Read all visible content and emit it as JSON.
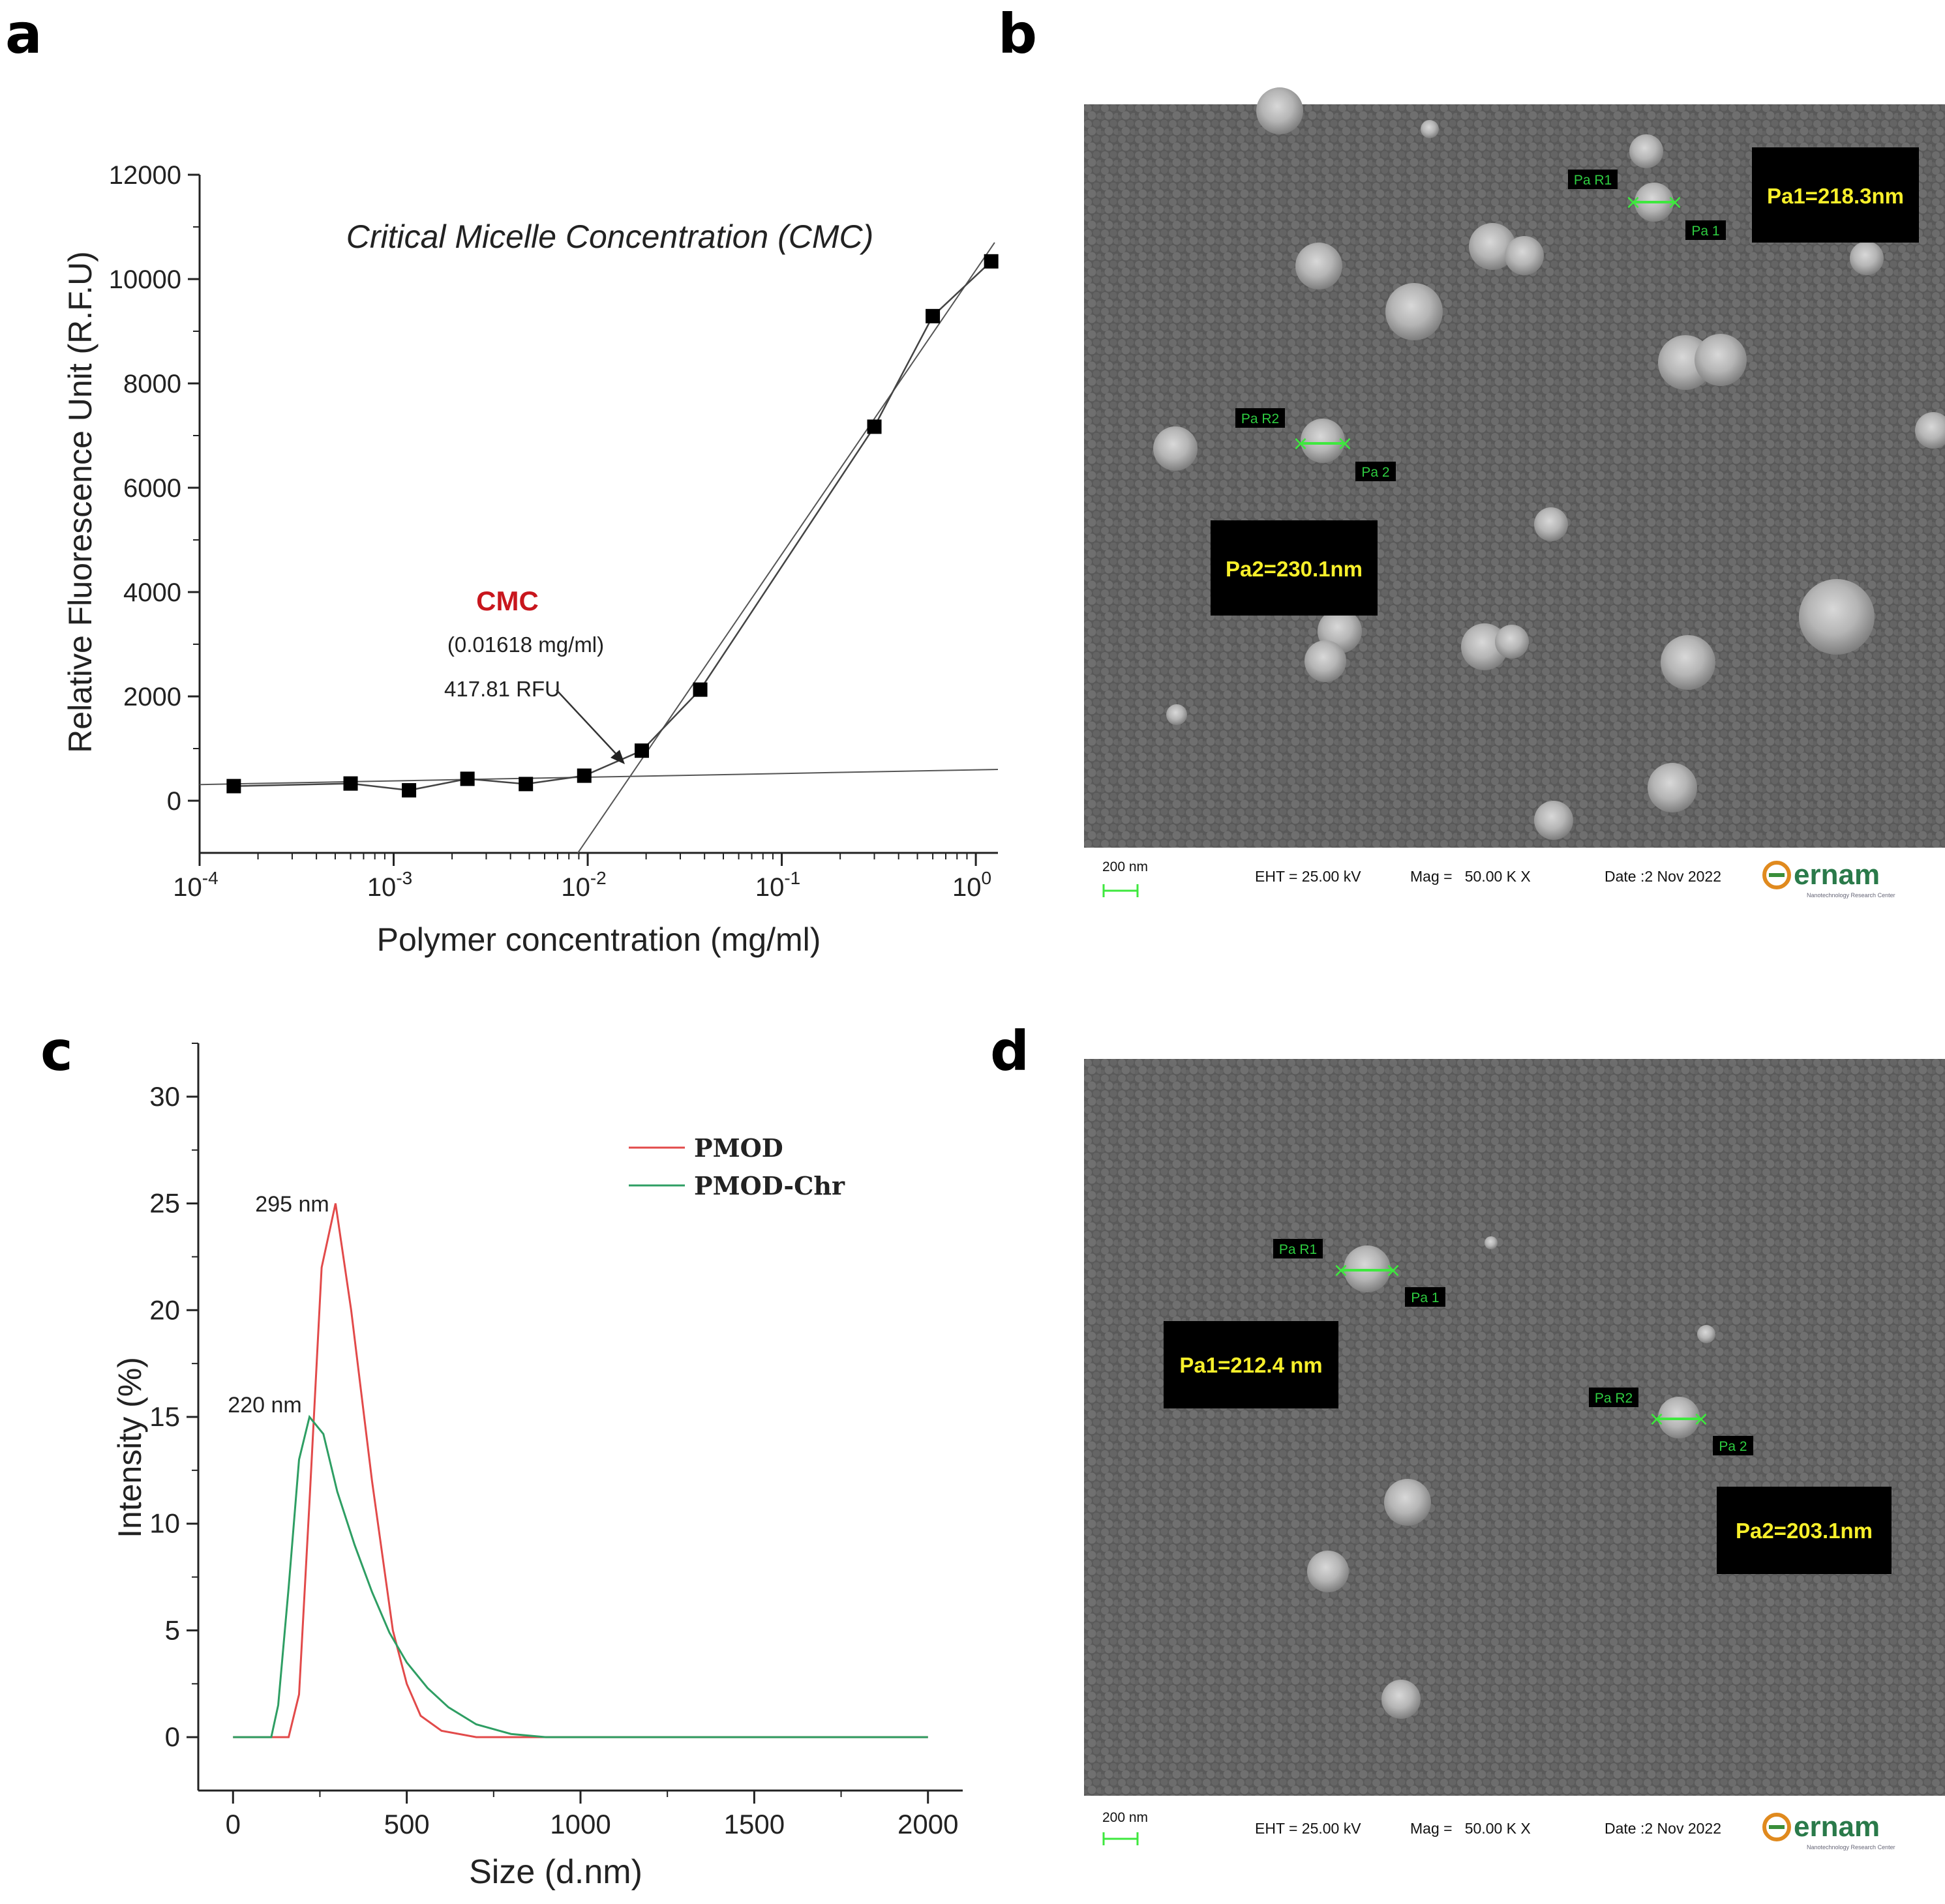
{
  "panels": {
    "a": {
      "letter": "a",
      "chart_data": {
        "type": "scatter",
        "title": "Critical Micelle Concentration (CMC)",
        "xlabel": "Polymer concentration (mg/ml)",
        "ylabel": "Relative Fluorescence Unit (R.F.U)",
        "xscale": "log",
        "xlim": [
          0.0001,
          1.3
        ],
        "ylim": [
          -1000,
          12000
        ],
        "x_tick_labels": [
          "10-4",
          "10-3",
          "10-2",
          "10-1",
          "100"
        ],
        "y_tick_labels": [
          "0",
          "2000",
          "4000",
          "6000",
          "8000",
          "10000",
          "12000"
        ],
        "series": [
          {
            "name": "Fluorescence",
            "x": [
              0.00015,
              0.0006,
              0.0012,
              0.0024,
              0.0048,
              0.0096,
              0.019,
              0.038,
              0.3,
              0.6,
              1.2
            ],
            "y": [
              280,
              330,
              200,
              420,
              320,
              480,
              960,
              2130,
              7170,
              9290,
              10340
            ]
          }
        ],
        "fit_lines": [
          {
            "name": "baseline",
            "x": [
              0.0001,
              1.3
            ],
            "y": [
              310,
              600
            ]
          },
          {
            "name": "rising",
            "x": [
              0.0089,
              1.25
            ],
            "y": [
              -1000,
              10700
            ]
          }
        ],
        "annotations": {
          "cmc_label": "CMC",
          "cmc_value": "(0.01618 mg/ml)",
          "cmc_rfu": "417.81 RFU",
          "cmc_point": {
            "x": 0.01618,
            "y": 417.81
          }
        }
      }
    },
    "b": {
      "letter": "b",
      "measurements": [
        {
          "label": "Pa1=218.3nm",
          "start_tag": "Pa R1",
          "end_tag": "Pa 1"
        },
        {
          "label": "Pa2=230.1nm",
          "start_tag": "Pa R2",
          "end_tag": "Pa 2"
        }
      ],
      "footer": {
        "scale_bar": "200 nm",
        "eht": "EHT = 25.00 kV",
        "mag": "Mag =   50.00 K X",
        "date": "Date :2 Nov 2022",
        "logo": "ernam",
        "logo_subtext": "Nanotechnology Research Center"
      }
    },
    "c": {
      "letter": "c",
      "chart_data": {
        "type": "line",
        "xlabel": "Size (d.nm)",
        "ylabel": "Intensity (%)",
        "xlim": [
          -100,
          2100
        ],
        "ylim": [
          -2.5,
          32.5
        ],
        "x_tick_labels": [
          "0",
          "500",
          "1000",
          "1500",
          "2000"
        ],
        "y_tick_labels": [
          "0",
          "5",
          "10",
          "15",
          "20",
          "25",
          "30"
        ],
        "legend_position": "top-right",
        "series": [
          {
            "name": "PMOD",
            "color": "#e24a4a",
            "x": [
              0,
              160,
              190,
              220,
              255,
              295,
              340,
              400,
              460,
              500,
              540,
              600,
              700,
              800,
              900,
              2000
            ],
            "y": [
              0,
              0,
              2,
              11,
              22,
              25,
              20,
              12,
              5,
              2.5,
              1,
              0.3,
              0,
              0,
              0,
              0
            ]
          },
          {
            "name": "PMOD-Chr",
            "color": "#2e9e63",
            "x": [
              0,
              110,
              130,
              160,
              190,
              220,
              260,
              300,
              350,
              400,
              450,
              500,
              560,
              620,
              700,
              800,
              900,
              2000
            ],
            "y": [
              0,
              0,
              1.5,
              7,
              13,
              15,
              14.2,
              11.5,
              9,
              6.8,
              4.9,
              3.5,
              2.3,
              1.4,
              0.6,
              0.15,
              0,
              0
            ]
          }
        ],
        "annotations": {
          "peak1_label": "295 nm",
          "peak1_point": {
            "x": 295,
            "y": 25
          },
          "peak2_label": "220 nm",
          "peak2_point": {
            "x": 220,
            "y": 15
          }
        }
      }
    },
    "d": {
      "letter": "d",
      "measurements": [
        {
          "label": "Pa1=212.4 nm",
          "start_tag": "Pa R1",
          "end_tag": "Pa 1"
        },
        {
          "label": "Pa2=203.1nm",
          "start_tag": "Pa R2",
          "end_tag": "Pa 2"
        }
      ],
      "footer": {
        "scale_bar": "200 nm",
        "eht": "EHT = 25.00 kV",
        "mag": "Mag =   50.00 K X",
        "date": "Date :2 Nov 2022",
        "logo": "ernam",
        "logo_subtext": "Nanotechnology Research Center"
      }
    }
  }
}
